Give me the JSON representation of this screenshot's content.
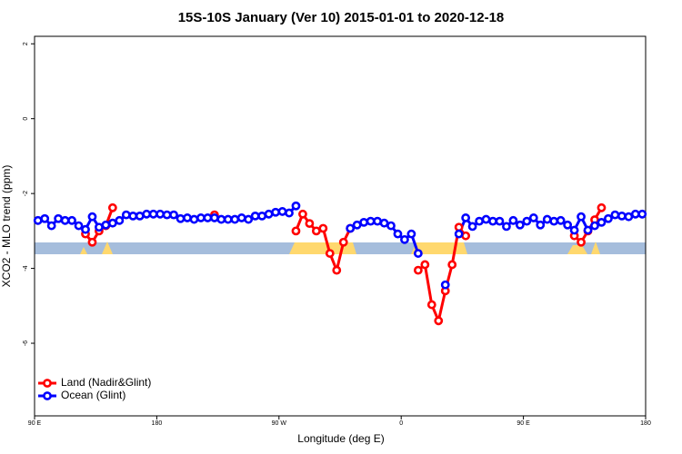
{
  "chart_data": {
    "type": "line",
    "title": "15S-10S January (Ver 10)   2015-01-01 to 2020-12-18",
    "xlabel": "Longitude (deg E)",
    "ylabel": "XCO2 - MLO trend (ppm)",
    "x": [
      92.5,
      97.5,
      102.5,
      107.5,
      112.5,
      117.5,
      122.5,
      127.5,
      132.5,
      137.5,
      142.5,
      147.5,
      152.5,
      157.5,
      162.5,
      167.5,
      172.5,
      177.5,
      182.5,
      187.5,
      192.5,
      197.5,
      202.5,
      207.5,
      212.5,
      217.5,
      222.5,
      227.5,
      232.5,
      237.5,
      242.5,
      247.5,
      252.5,
      257.5,
      262.5,
      267.5,
      272.5,
      277.5,
      282.5,
      287.5,
      292.5,
      297.5,
      302.5,
      307.5,
      312.5,
      317.5,
      322.5,
      327.5,
      332.5,
      337.5,
      342.5,
      347.5,
      352.5,
      357.5,
      362.5,
      367.5,
      372.5,
      377.5,
      382.5,
      387.5,
      392.5,
      397.5,
      402.5,
      407.5,
      412.5,
      417.5,
      422.5,
      427.5,
      432.5,
      437.5,
      442.5,
      447.5,
      452.5,
      457.5,
      462.5,
      467.5,
      472.5,
      477.5,
      482.5,
      487.5,
      492.5,
      497.5,
      502.5,
      507.5,
      512.5,
      517.5,
      522.5,
      527.5,
      532.5,
      537.5
    ],
    "series": [
      {
        "name": "Land (Nadir&Glint)",
        "color": "#ff0000",
        "values": [
          null,
          null,
          null,
          null,
          null,
          null,
          null,
          -3.08,
          -3.3,
          -3.0,
          -2.86,
          -2.38,
          null,
          null,
          null,
          null,
          null,
          null,
          null,
          null,
          null,
          null,
          null,
          null,
          null,
          null,
          -2.57,
          null,
          null,
          null,
          null,
          null,
          null,
          null,
          null,
          null,
          null,
          null,
          -3.0,
          -2.55,
          -2.8,
          -3.0,
          -2.93,
          -3.6,
          -4.05,
          -3.3,
          -2.93,
          null,
          null,
          null,
          null,
          null,
          null,
          null,
          null,
          null,
          -4.05,
          -3.9,
          -4.97,
          -5.4,
          -4.6,
          -3.9,
          -2.9,
          -3.13,
          null,
          null,
          null,
          null,
          null,
          null,
          null,
          null,
          null,
          null,
          null,
          null,
          null,
          null,
          null,
          -3.13,
          -3.3,
          -3.0,
          -2.7,
          -2.38,
          null,
          null,
          null,
          null,
          null,
          null
        ]
      },
      {
        "name": "Ocean (Glint)",
        "color": "#0000ff",
        "values": [
          -2.72,
          -2.67,
          -2.86,
          -2.67,
          -2.72,
          -2.72,
          -2.86,
          -2.96,
          -2.62,
          -2.9,
          -2.84,
          -2.79,
          -2.72,
          -2.57,
          -2.6,
          -2.6,
          -2.55,
          -2.55,
          -2.55,
          -2.57,
          -2.57,
          -2.67,
          -2.65,
          -2.69,
          -2.65,
          -2.65,
          -2.65,
          -2.69,
          -2.69,
          -2.69,
          -2.65,
          -2.69,
          -2.6,
          -2.6,
          -2.55,
          -2.5,
          -2.48,
          -2.52,
          -2.33,
          null,
          null,
          null,
          null,
          null,
          null,
          null,
          -2.93,
          -2.84,
          -2.77,
          -2.74,
          -2.74,
          -2.79,
          -2.86,
          -3.08,
          -3.23,
          -3.08,
          -3.6,
          null,
          null,
          null,
          -4.44,
          null,
          -3.08,
          -2.65,
          -2.88,
          -2.74,
          -2.69,
          -2.74,
          -2.74,
          -2.88,
          -2.72,
          -2.84,
          -2.74,
          -2.65,
          -2.84,
          -2.69,
          -2.74,
          -2.72,
          -2.84,
          -2.98,
          -2.62,
          -2.98,
          -2.86,
          -2.77,
          -2.67,
          -2.57,
          -2.6,
          -2.62,
          -2.55,
          -2.55
        ]
      }
    ],
    "xlim": [
      90,
      540
    ],
    "xticks": [
      {
        "value": 90,
        "label": "90 E"
      },
      180,
      {
        "value": 270,
        "label": "90 W"
      },
      {
        "value": 360,
        "label": "0"
      },
      {
        "value": 450,
        "label": "90 E"
      },
      {
        "value": 540,
        "label": "180"
      }
    ],
    "ylim": [
      -7.94,
      2.2
    ],
    "yticks": [
      -6,
      -4,
      -2,
      0,
      2
    ],
    "legend": "bottomleft"
  }
}
